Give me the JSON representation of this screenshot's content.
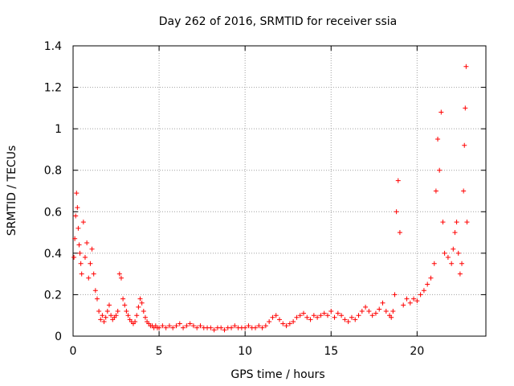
{
  "chart_data": {
    "type": "scatter",
    "title": "Day 262 of 2016, SRMTID for receiver ssia",
    "xlabel": "GPS time / hours",
    "ylabel": "SRMTID / TECUs",
    "xlim": [
      0,
      24
    ],
    "ylim": [
      0,
      1.4
    ],
    "xticks": [
      0,
      5,
      10,
      15,
      20
    ],
    "xtick_labels": [
      "0",
      "5",
      "10",
      "15",
      "20"
    ],
    "yticks": [
      0,
      0.2,
      0.4,
      0.6,
      0.8,
      1.0,
      1.2,
      1.4
    ],
    "ytick_labels": [
      "0",
      "0.2",
      "0.4",
      "0.6",
      "0.8",
      "1",
      "1.2",
      "1.4"
    ],
    "grid": true,
    "legend": "none",
    "marker": "+",
    "color": "#ff0000",
    "series": [
      {
        "x": [
          0.05,
          0.1,
          0.15,
          0.2,
          0.25,
          0.3,
          0.35,
          0.4,
          0.45,
          0.5,
          0.6,
          0.7,
          0.8,
          0.9,
          1.0,
          1.1,
          1.2,
          1.3,
          1.4,
          1.5,
          1.6,
          1.7,
          1.8,
          1.9,
          2.0,
          2.1,
          2.2,
          2.3,
          2.4,
          2.5,
          2.6,
          2.7,
          2.8,
          2.9,
          3.0,
          3.1,
          3.2,
          3.3,
          3.4,
          3.5,
          3.6,
          3.7,
          3.8,
          3.9,
          4.0,
          4.1,
          4.2,
          4.3,
          4.4,
          4.5,
          4.6,
          4.7,
          4.8,
          4.9,
          5.0,
          5.2,
          5.4,
          5.6,
          5.8,
          6.0,
          6.2,
          6.4,
          6.6,
          6.8,
          7.0,
          7.2,
          7.4,
          7.6,
          7.8,
          8.0,
          8.2,
          8.4,
          8.6,
          8.8,
          9.0,
          9.2,
          9.4,
          9.6,
          9.8,
          10.0,
          10.2,
          10.4,
          10.6,
          10.8,
          11.0,
          11.2,
          11.4,
          11.6,
          11.8,
          12.0,
          12.2,
          12.4,
          12.6,
          12.8,
          13.0,
          13.2,
          13.4,
          13.6,
          13.8,
          14.0,
          14.2,
          14.4,
          14.6,
          14.8,
          15.0,
          15.2,
          15.4,
          15.6,
          15.8,
          16.0,
          16.2,
          16.4,
          16.6,
          16.8,
          17.0,
          17.2,
          17.4,
          17.6,
          17.8,
          18.0,
          18.2,
          18.4,
          18.5,
          18.6,
          18.7,
          18.8,
          18.9,
          19.0,
          19.2,
          19.4,
          19.6,
          19.8,
          20.0,
          20.2,
          20.4,
          20.6,
          20.8,
          21.0,
          21.1,
          21.2,
          21.3,
          21.4,
          21.5,
          21.6,
          21.8,
          22.0,
          22.1,
          22.2,
          22.3,
          22.4,
          22.5,
          22.6,
          22.7,
          22.75,
          22.8,
          22.85,
          22.9
        ],
        "y": [
          0.38,
          0.47,
          0.58,
          0.69,
          0.62,
          0.52,
          0.44,
          0.4,
          0.35,
          0.3,
          0.55,
          0.38,
          0.45,
          0.28,
          0.35,
          0.42,
          0.3,
          0.22,
          0.18,
          0.12,
          0.08,
          0.1,
          0.07,
          0.09,
          0.12,
          0.15,
          0.1,
          0.08,
          0.09,
          0.1,
          0.12,
          0.3,
          0.28,
          0.18,
          0.15,
          0.12,
          0.1,
          0.08,
          0.07,
          0.06,
          0.07,
          0.1,
          0.14,
          0.18,
          0.16,
          0.12,
          0.09,
          0.07,
          0.06,
          0.05,
          0.05,
          0.04,
          0.05,
          0.04,
          0.04,
          0.05,
          0.04,
          0.05,
          0.04,
          0.05,
          0.06,
          0.04,
          0.05,
          0.06,
          0.05,
          0.04,
          0.05,
          0.04,
          0.04,
          0.04,
          0.03,
          0.04,
          0.04,
          0.03,
          0.04,
          0.04,
          0.05,
          0.04,
          0.04,
          0.04,
          0.05,
          0.04,
          0.04,
          0.05,
          0.04,
          0.05,
          0.07,
          0.09,
          0.1,
          0.08,
          0.06,
          0.05,
          0.06,
          0.07,
          0.09,
          0.1,
          0.11,
          0.09,
          0.08,
          0.1,
          0.09,
          0.1,
          0.11,
          0.1,
          0.12,
          0.09,
          0.11,
          0.1,
          0.08,
          0.07,
          0.09,
          0.08,
          0.1,
          0.12,
          0.14,
          0.12,
          0.1,
          0.11,
          0.13,
          0.16,
          0.12,
          0.1,
          0.09,
          0.12,
          0.2,
          0.6,
          0.75,
          0.5,
          0.15,
          0.18,
          0.16,
          0.18,
          0.17,
          0.2,
          0.22,
          0.25,
          0.28,
          0.35,
          0.7,
          0.95,
          0.8,
          1.08,
          0.55,
          0.4,
          0.38,
          0.35,
          0.42,
          0.5,
          0.55,
          0.4,
          0.3,
          0.35,
          0.7,
          0.92,
          1.1,
          1.3,
          0.55
        ]
      }
    ]
  }
}
